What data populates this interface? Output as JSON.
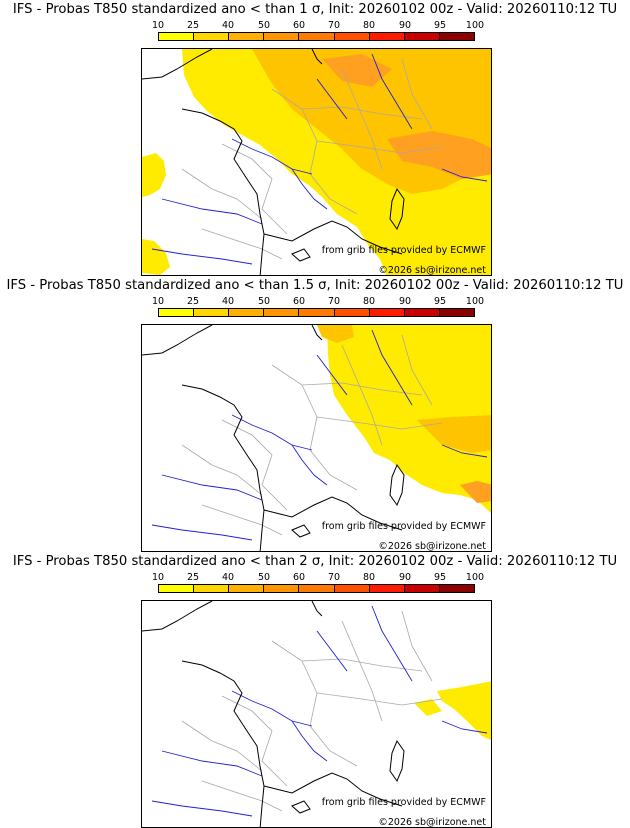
{
  "colorbar": {
    "ticks": [
      "10",
      "25",
      "40",
      "50",
      "60",
      "70",
      "80",
      "90",
      "95",
      "100"
    ],
    "colors": [
      "#ffff00",
      "#ffd700",
      "#ffb000",
      "#ff9500",
      "#ff7a00",
      "#ff5000",
      "#ff1a00",
      "#c80000",
      "#8b0000"
    ]
  },
  "colors": {
    "coastline": "#000000",
    "borders": "#a8a8a8",
    "rivers": "#2020d0",
    "prob_low": "#ffeb00",
    "prob_mid": "#ffc400",
    "prob_high": "#ffa020"
  },
  "credits": {
    "grib": "from grib files provided by ECMWF",
    "copyright": "©2026 sb@irizone.net"
  },
  "panels": [
    {
      "title": "IFS - Probas T850  standardized ano < than 1 σ, Init: 20260102 00z - Valid: 20260110:12 TU",
      "threshold": "1 σ"
    },
    {
      "title": "IFS - Probas T850  standardized ano < than 1.5 σ, Init: 20260102 00z - Valid: 20260110:12 TU",
      "threshold": "1.5 σ"
    },
    {
      "title": "IFS - Probas T850  standardized ano < than 2 σ, Init: 20260102 00z - Valid: 20260110:12 TU",
      "threshold": "2 σ"
    }
  ]
}
